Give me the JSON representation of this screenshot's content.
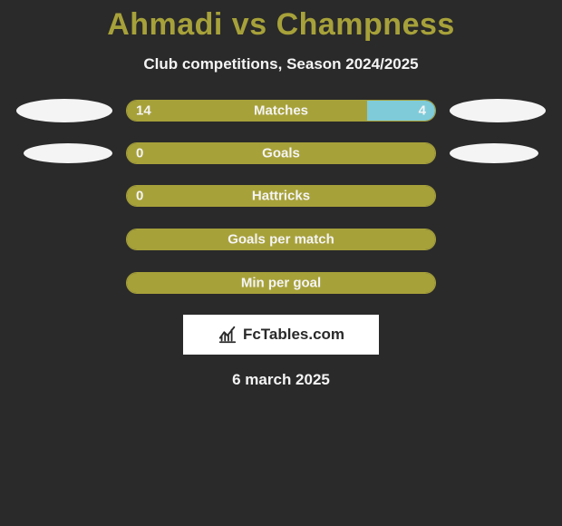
{
  "colors": {
    "background": "#2a2a2a",
    "title": "#a7a13a",
    "subtitle": "#f4f4f4",
    "text": "#f4f4f4",
    "bar_fill_left": "#a7a13a",
    "bar_fill_right": "#7fcbd9",
    "bar_border": "#a7a13a",
    "bar_empty": "transparent",
    "ellipse": "#f4f4f4",
    "logo_bg": "#ffffff",
    "logo_text": "#2a2a2a",
    "logo_icon": "#2a2a2a"
  },
  "title": "Ahmadi vs Champness",
  "subtitle": "Club competitions, Season 2024/2025",
  "date": "6 march 2025",
  "logo_text": "FcTables.com",
  "bar_style": {
    "height": 24,
    "radius": 12,
    "label_fontsize": 15,
    "val_fontsize": 15
  },
  "rows": [
    {
      "name": "matches",
      "label": "Matches",
      "left_val": "14",
      "right_val": "4",
      "left_pct": 77.8,
      "right_pct": 22.2,
      "show_left_ellipse": true,
      "show_right_ellipse": true,
      "show_left_val": true,
      "show_right_val": true,
      "left_ellipse_width": 106,
      "left_ellipse_height": 26,
      "right_ellipse_width": 106,
      "right_ellipse_height": 26
    },
    {
      "name": "goals",
      "label": "Goals",
      "left_val": "0",
      "right_val": "",
      "left_pct": 100,
      "right_pct": 0,
      "show_left_ellipse": true,
      "show_right_ellipse": true,
      "show_left_val": true,
      "show_right_val": false,
      "left_ellipse_width": 98,
      "left_ellipse_height": 22,
      "right_ellipse_width": 98,
      "right_ellipse_height": 22
    },
    {
      "name": "hattricks",
      "label": "Hattricks",
      "left_val": "0",
      "right_val": "",
      "left_pct": 100,
      "right_pct": 0,
      "show_left_ellipse": false,
      "show_right_ellipse": false,
      "show_left_val": true,
      "show_right_val": false
    },
    {
      "name": "goals-per-match",
      "label": "Goals per match",
      "left_val": "",
      "right_val": "",
      "left_pct": 100,
      "right_pct": 0,
      "show_left_ellipse": false,
      "show_right_ellipse": false,
      "show_left_val": false,
      "show_right_val": false
    },
    {
      "name": "min-per-goal",
      "label": "Min per goal",
      "left_val": "",
      "right_val": "",
      "left_pct": 100,
      "right_pct": 0,
      "show_left_ellipse": false,
      "show_right_ellipse": false,
      "show_left_val": false,
      "show_right_val": false
    }
  ]
}
